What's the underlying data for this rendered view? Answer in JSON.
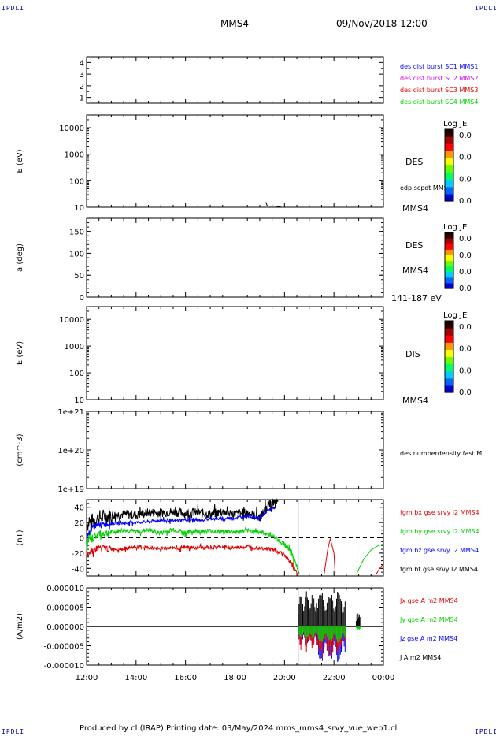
{
  "header": {
    "corner_left": "IPDLI",
    "corner_right": "IPDLI",
    "corner_bl": "IPDLI",
    "corner_br": "IPDLI",
    "spacecraft": "MMS4",
    "datetime": "09/Nov/2018 12:00"
  },
  "footer": {
    "text": "Produced by cl (IRAP)   Printing date: 03/May/2024   mms_mms4_srvy_vue_web1.cl"
  },
  "colors": {
    "black": "#000000",
    "red": "#e00000",
    "green": "#00d000",
    "blue": "#0000ff",
    "magenta": "#e000e0",
    "colorbar_bottom": "#0000cc"
  },
  "chart_data": [
    {
      "id": "p1",
      "type": "line",
      "yticks": [
        "4",
        "3",
        "2",
        "1"
      ],
      "ylim": [
        0.5,
        4.5
      ],
      "legend": [
        {
          "text": "des dist burst SC1 MMS1",
          "color": "#0000ff"
        },
        {
          "text": "des dist burst SC2 MMS2",
          "color": "#e000e0"
        },
        {
          "text": "des dist burst SC3 MMS3",
          "color": "#e00000"
        },
        {
          "text": "des dist burst SC4 MMS4",
          "color": "#00d000"
        }
      ]
    },
    {
      "id": "p2",
      "type": "heatmap",
      "ylabel": "E (eV)",
      "yscale": "log",
      "yticks": [
        "10000",
        "1000",
        "100",
        "10"
      ],
      "ylim": [
        10,
        30000
      ],
      "right_label": "DES",
      "right_label2": "edp scpot MMS4",
      "right_bottom": "MMS4",
      "colorbar": {
        "title": "Log JE",
        "ticks": [
          "0.0",
          "0.0",
          "0.0",
          "0.0"
        ]
      },
      "trace": {
        "name": "edp scpot MMS4",
        "x": [
          19.25,
          19.3,
          19.4,
          19.55,
          19.7,
          19.85
        ],
        "y": [
          15.5,
          11.4,
          11.0,
          11.2,
          10.8,
          10.5
        ]
      }
    },
    {
      "id": "p3",
      "type": "heatmap",
      "ylabel": "a (deg)",
      "yticks": [
        "150",
        "100",
        "50",
        "0"
      ],
      "ylim": [
        0,
        180
      ],
      "right_label": "DES",
      "right_label2": "MMS4",
      "right_bottom": "141-187 eV",
      "colorbar": {
        "title": "Log JE",
        "ticks": [
          "0.0",
          "0.0",
          "0.0",
          "0.0"
        ]
      }
    },
    {
      "id": "p4",
      "type": "heatmap",
      "ylabel": "E (eV)",
      "yscale": "log",
      "yticks": [
        "10000",
        "1000",
        "100",
        "10"
      ],
      "ylim": [
        10,
        30000
      ],
      "right_label": "DIS",
      "right_bottom": "MMS4",
      "colorbar": {
        "title": "Log JE",
        "ticks": [
          "0.0",
          "0.0",
          "0.0",
          "0.0"
        ]
      }
    },
    {
      "id": "p5",
      "type": "line",
      "ylabel": "(cm^-3)",
      "yscale": "log",
      "yticks": [
        "1e+21",
        "1e+20",
        "1e+19"
      ],
      "ylim": [
        1e+19,
        1e+21
      ],
      "legend": [
        {
          "text": "des numberdensity fast M",
          "color": "#000000"
        }
      ]
    },
    {
      "id": "p6",
      "type": "line",
      "ylabel": "(nT)",
      "yticks": [
        "40",
        "20",
        "0",
        "-20",
        "-40"
      ],
      "ylim": [
        -50,
        50
      ],
      "zero_line": true,
      "legend": [
        {
          "text": "fgm bx gse srvy l2 MMS4",
          "color": "#e00000"
        },
        {
          "text": "fgm by gse srvy l2 MMS4",
          "color": "#00d000"
        },
        {
          "text": "fgm bz gse srvy l2 MMS4",
          "color": "#0000ff"
        },
        {
          "text": "fgm bt gse srvy l2 MMS4",
          "color": "#000000"
        }
      ],
      "series": [
        {
          "name": "fgm bt gse srvy l2 MMS4",
          "color": "#000000",
          "noise": 6,
          "x": [
            12.0,
            12.5,
            13.0,
            13.5,
            14.0,
            14.5,
            15.0,
            15.5,
            16.0,
            16.5,
            17.0,
            17.5,
            18.0,
            18.5,
            19.0,
            19.3,
            19.6,
            19.75
          ],
          "y": [
            18,
            26,
            30,
            31,
            30,
            33,
            33,
            34,
            32,
            33,
            31,
            34,
            31,
            33,
            27,
            40,
            48,
            52
          ]
        },
        {
          "name": "fgm bz gse srvy l2 MMS4",
          "color": "#0000ff",
          "noise": 2,
          "x": [
            12.0,
            12.3,
            12.6,
            13.0,
            13.5,
            14.0,
            14.5,
            15.0,
            15.5,
            16.0,
            16.5,
            17.0,
            17.5,
            18.0,
            18.5,
            19.0,
            19.3,
            19.6
          ],
          "y": [
            2,
            15,
            17,
            19,
            19,
            20,
            21,
            23,
            22,
            24,
            23,
            25,
            25,
            26,
            29,
            25,
            35,
            40
          ]
        },
        {
          "name": "fgm by gse srvy l2 MMS4",
          "color": "#00d000",
          "noise": 3,
          "x": [
            12.0,
            12.5,
            13.0,
            13.5,
            14.0,
            14.5,
            15.0,
            15.5,
            16.0,
            16.5,
            17.0,
            17.5,
            18.0,
            18.5,
            19.0,
            19.5,
            20.0,
            20.3,
            20.6
          ],
          "y": [
            -5,
            5,
            7,
            10,
            8,
            10,
            6,
            11,
            7,
            9,
            9,
            8,
            8,
            9,
            8,
            3,
            -8,
            -20,
            -48
          ]
        },
        {
          "name": "fgm bx gse srvy l2 MMS4",
          "color": "#e00000",
          "noise": 2.5,
          "x": [
            12.0,
            12.5,
            13.0,
            13.5,
            14.0,
            14.5,
            15.0,
            15.5,
            16.0,
            16.5,
            17.0,
            17.5,
            18.0,
            18.5,
            19.0,
            19.5,
            20.0,
            20.3,
            20.55
          ],
          "y": [
            -20,
            -13,
            -15,
            -14,
            -12,
            -13,
            -14,
            -13,
            -13,
            -13,
            -13,
            -12,
            -13,
            -12,
            -13,
            -15,
            -22,
            -35,
            -48
          ]
        },
        {
          "name": "fgm bx gse srvy l2 MMS4 (late)",
          "color": "#e00000",
          "noise": 0,
          "x": [
            21.6,
            21.75,
            21.85,
            22.0,
            22.05
          ],
          "y": [
            -48,
            -15,
            -1,
            -20,
            -48
          ]
        },
        {
          "name": "fgm by gse srvy l2 MMS4 (late)",
          "color": "#00d000",
          "noise": 0,
          "x": [
            22.9,
            23.2,
            23.5,
            23.8,
            24.0
          ],
          "y": [
            -48,
            -28,
            -16,
            -10,
            -8
          ]
        },
        {
          "name": "fgm bx gse srvy l2 MMS4 (end)",
          "color": "#e00000",
          "noise": 0,
          "x": [
            23.7,
            23.85,
            24.0
          ],
          "y": [
            -48,
            -40,
            -34
          ]
        }
      ],
      "vlines": [
        {
          "x": 20.55,
          "color": "#0000ff"
        }
      ]
    },
    {
      "id": "p7",
      "type": "line",
      "ylabel": "(A/m2)",
      "yticks": [
        "0.000010",
        "0.000005",
        "0.000000",
        "-0.000005",
        "-0.000010"
      ],
      "ylim": [
        -1e-05,
        1e-05
      ],
      "legend": [
        {
          "text": "Jx gse A m2 MMS4",
          "color": "#e00000"
        },
        {
          "text": "Jy gse A m2 MMS4",
          "color": "#00d000"
        },
        {
          "text": "Jz gse A m2 MMS4",
          "color": "#0000ff"
        },
        {
          "text": "J A m2 MMS4",
          "color": "#000000"
        }
      ],
      "bursts": [
        {
          "x0": 20.55,
          "x1": 21.3,
          "black": 9.5e-06,
          "green": -3.5e-06,
          "red": -8e-06,
          "blue": -5.5e-06
        },
        {
          "x0": 21.3,
          "x1": 22.45,
          "black": 9.8e-06,
          "green": -4.5e-06,
          "red": -1e-05,
          "blue": -1e-05
        },
        {
          "x0": 22.9,
          "x1": 23.05,
          "black": 4e-06,
          "green": -1e-06,
          "red": -5e-07,
          "blue": -3e-07
        }
      ],
      "vlines": [
        {
          "x": 20.55,
          "color": "#0000ff"
        }
      ]
    }
  ],
  "xaxis": {
    "ticks": [
      {
        "x": 12,
        "label": "12:00"
      },
      {
        "x": 14,
        "label": "14:00"
      },
      {
        "x": 16,
        "label": "16:00"
      },
      {
        "x": 18,
        "label": "18:00"
      },
      {
        "x": 20,
        "label": "20:00"
      },
      {
        "x": 22,
        "label": "22:00"
      },
      {
        "x": 24,
        "label": "00:00"
      }
    ],
    "xlim": [
      12,
      24
    ]
  }
}
